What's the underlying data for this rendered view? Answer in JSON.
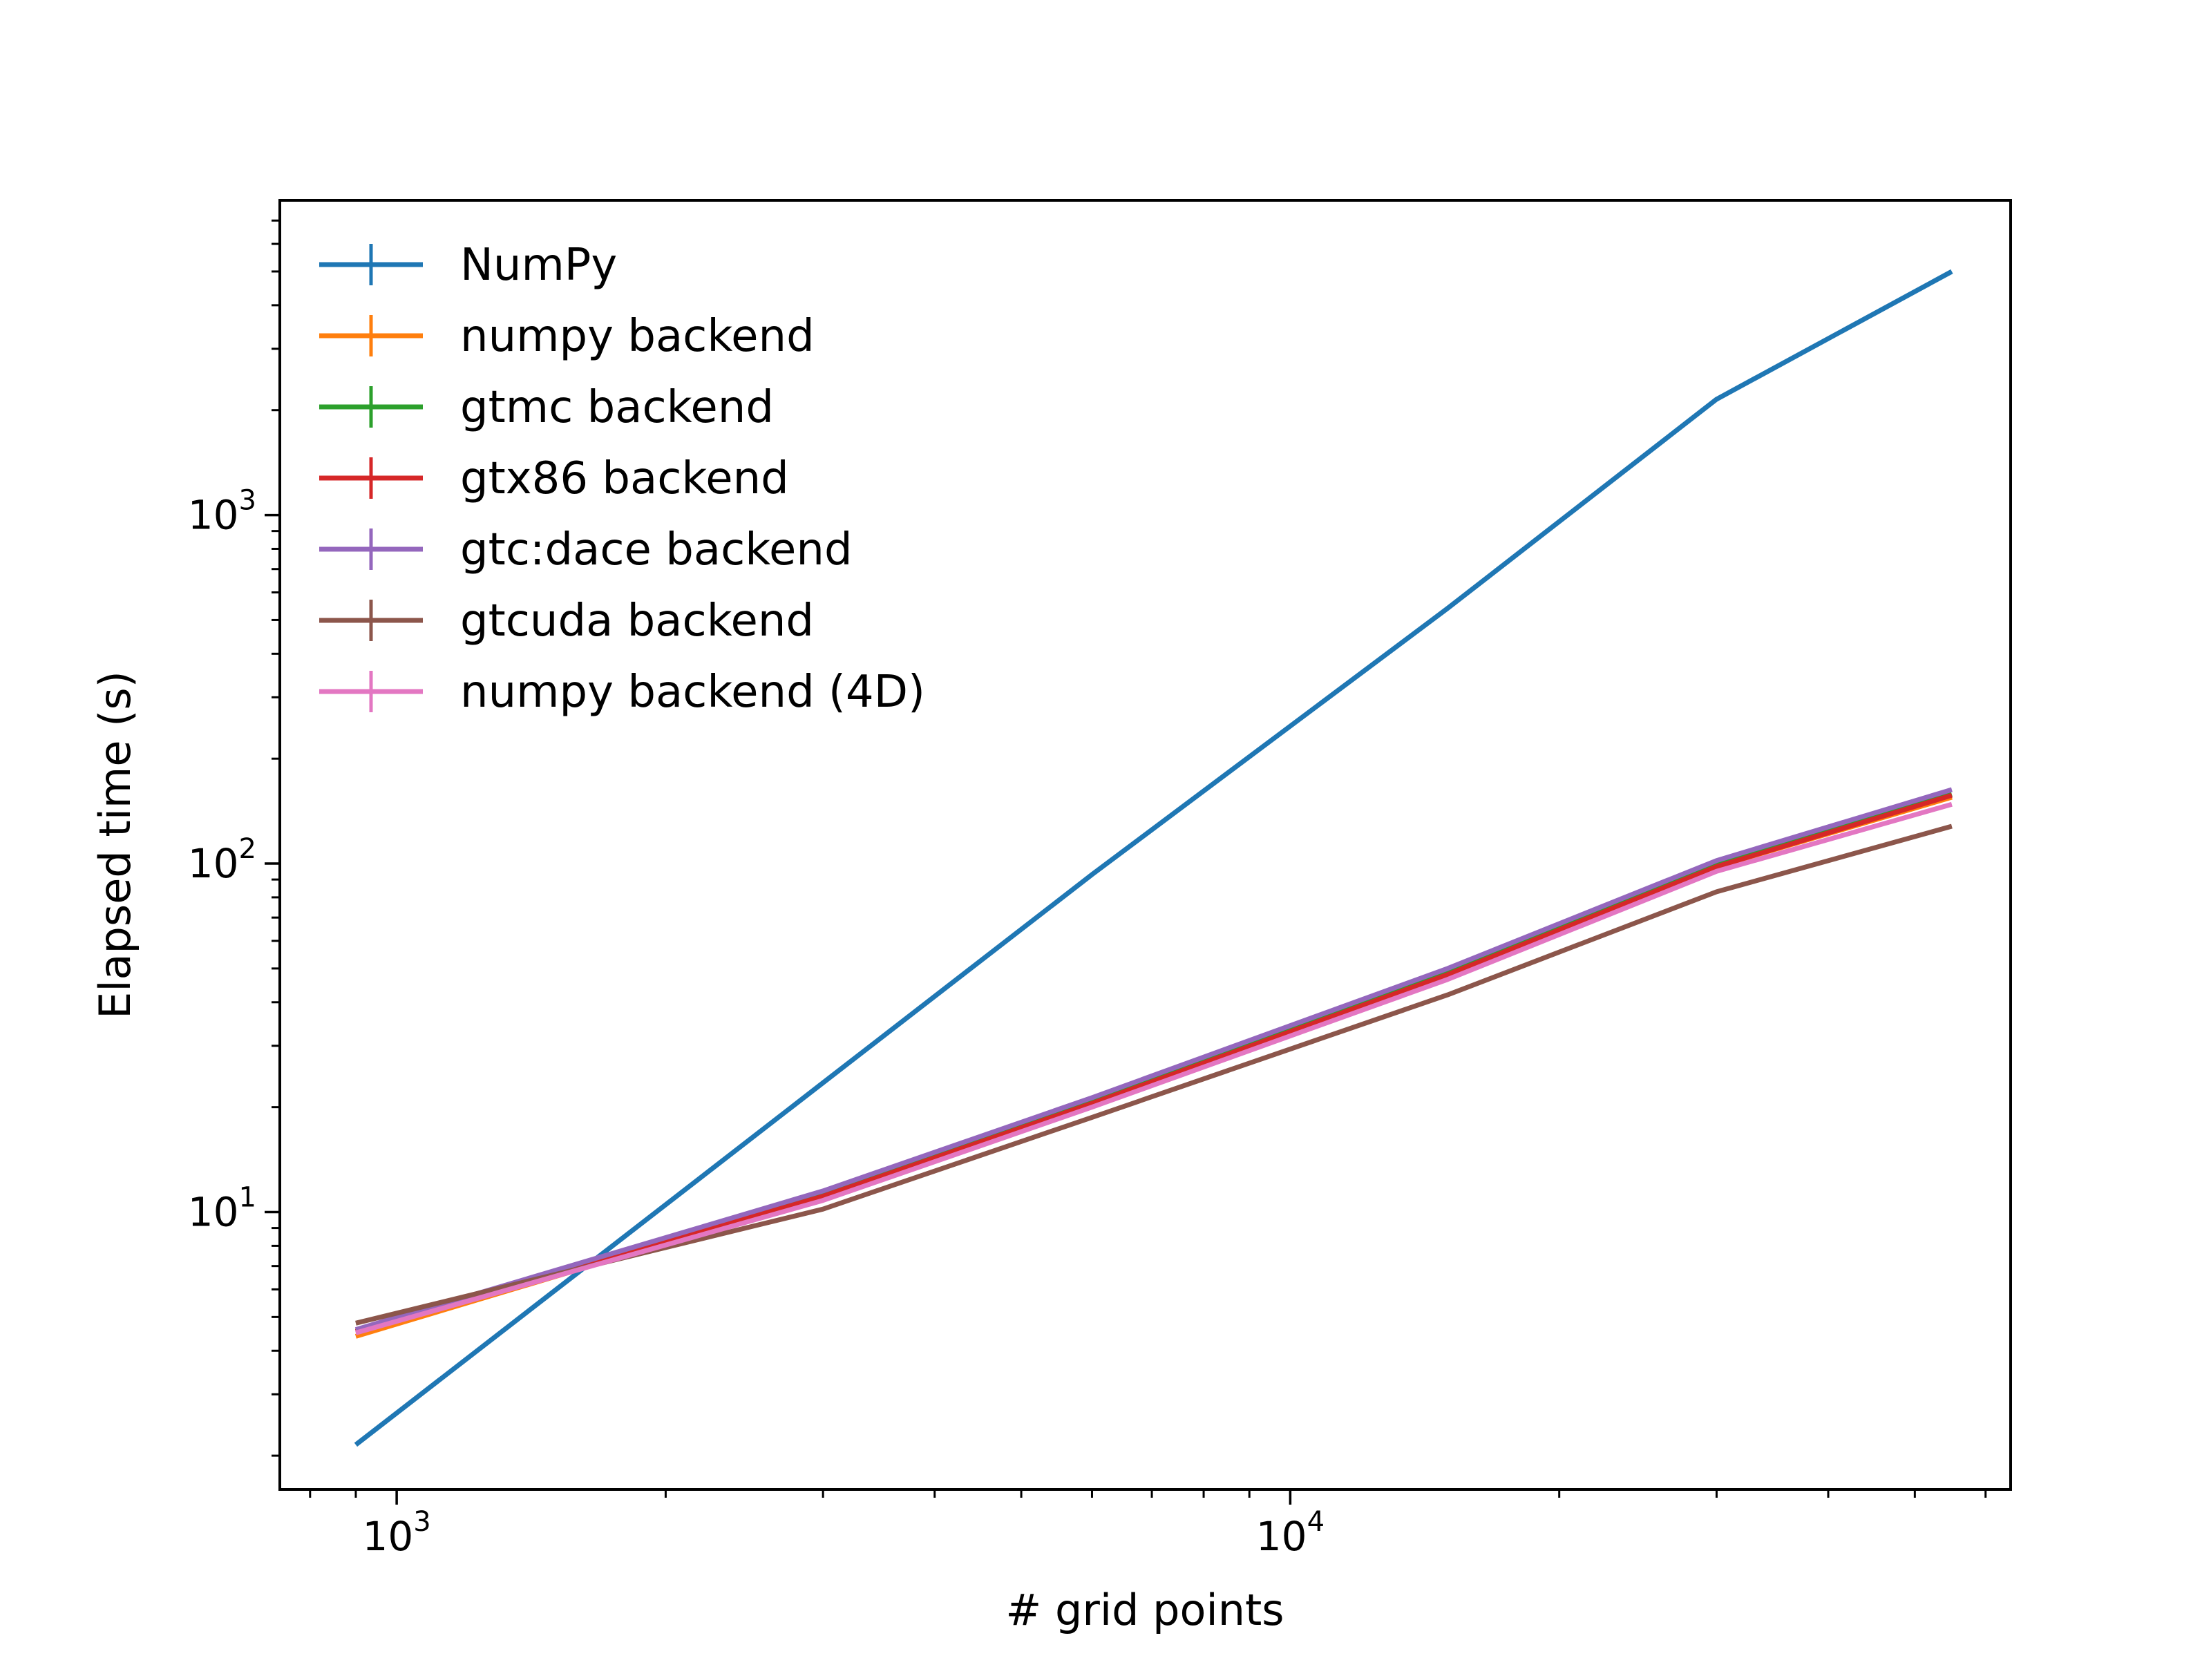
{
  "chart_data": {
    "type": "line",
    "title": "",
    "xlabel": "# grid points",
    "ylabel": "Elapsed time (s)",
    "xscale": "log",
    "yscale": "log",
    "xlim": [
      740,
      64000
    ],
    "ylim": [
      1.6,
      8000
    ],
    "grid": false,
    "legend_position": "top-left",
    "x_ticks": [
      {
        "value": 1000,
        "base": "10",
        "exp": "3"
      },
      {
        "value": 10000,
        "base": "10",
        "exp": "4"
      }
    ],
    "y_ticks": [
      {
        "value": 10,
        "base": "10",
        "exp": "1"
      },
      {
        "value": 100,
        "base": "10",
        "exp": "2"
      },
      {
        "value": 1000,
        "base": "10",
        "exp": "3"
      }
    ],
    "x": [
      900,
      3000,
      6000,
      15000,
      30000,
      55000
    ],
    "series": [
      {
        "name": "NumPy",
        "color": "#1f77b4",
        "values": [
          2.15,
          23.5,
          93,
          540,
          2150,
          5000
        ]
      },
      {
        "name": "numpy backend",
        "color": "#ff7f0e",
        "values": [
          4.4,
          11.1,
          20.6,
          48,
          98,
          155
        ]
      },
      {
        "name": "gtmc backend",
        "color": "#2ca02c",
        "values": [
          4.55,
          11.2,
          20.8,
          48.5,
          99,
          158
        ]
      },
      {
        "name": "gtx86 backend",
        "color": "#d62728",
        "values": [
          4.55,
          11.1,
          20.5,
          48,
          98,
          157
        ]
      },
      {
        "name": "gtc:dace backend",
        "color": "#9467bd",
        "values": [
          4.6,
          11.5,
          21.3,
          50,
          102,
          163
        ]
      },
      {
        "name": "gtcuda backend",
        "color": "#8c564b",
        "values": [
          4.8,
          10.2,
          18.7,
          42,
          83,
          128
        ]
      },
      {
        "name": "numpy backend (4D)",
        "color": "#e377c2",
        "values": [
          4.5,
          10.8,
          20.0,
          46.5,
          95,
          148
        ]
      }
    ]
  }
}
